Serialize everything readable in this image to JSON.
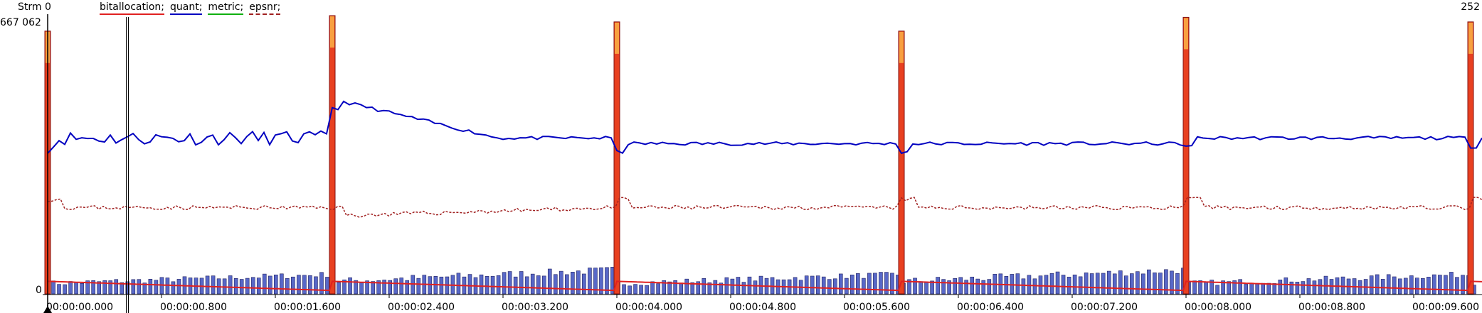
{
  "header": {
    "stream_label": "Strm 0",
    "right_label": "252",
    "y_max_label": "667 062",
    "y_min_label": "0"
  },
  "legend": [
    {
      "name": "bitallocation;",
      "color": "#e02020",
      "style": "solid"
    },
    {
      "name": "quant;",
      "color": "#0000c0",
      "style": "solid"
    },
    {
      "name": "metric;",
      "color": "#10b010",
      "style": "solid"
    },
    {
      "name": "epsnr;",
      "color": "#a02020",
      "style": "dashed"
    }
  ],
  "colors": {
    "frame_bar_fill": "#5868c8",
    "frame_bar_stroke": "#202060",
    "keyframe_fill": "#e84020",
    "keyframe_top": "#f8a040",
    "quant_line": "#0000c0",
    "bitalloc_line": "#e02020",
    "epsnr_line": "#a02020",
    "cursor": "#000000"
  },
  "chart_data": {
    "type": "bar",
    "title": "",
    "xlabel": "",
    "ylabel": "",
    "ylim": [
      0,
      667062
    ],
    "x_tick_labels": [
      "00:00:00.000",
      "00:00:00.800",
      "00:00:01.600",
      "00:00:02.400",
      "00:00:03.200",
      "00:00:04.000",
      "00:00:04.800",
      "00:00:05.600",
      "00:00:06.400",
      "00:00:07.200",
      "00:00:08.000",
      "00:00:08.800",
      "00:00:09.600"
    ],
    "x_tick_seconds": [
      0,
      0.8,
      1.6,
      2.4,
      3.2,
      4.0,
      4.8,
      5.6,
      6.4,
      7.2,
      8.0,
      8.8,
      9.6
    ],
    "frame_count": 252,
    "keyframes": [
      {
        "time_s": 0.0,
        "size": 630000
      },
      {
        "time_s": 2.0,
        "size": 667062
      },
      {
        "time_s": 4.0,
        "size": 652000
      },
      {
        "time_s": 6.0,
        "size": 630000
      },
      {
        "time_s": 8.0,
        "size": 663000
      },
      {
        "time_s": 10.0,
        "size": 652000
      }
    ],
    "frame_sizes_approx_range": [
      8000,
      52000
    ],
    "cursor_time_s": 0.56,
    "series": [
      {
        "name": "quant",
        "approx_level_fraction": 0.56,
        "note_peak_after_keyframe_2": 0.7
      },
      {
        "name": "epsnr",
        "approx_level_fraction": 0.31
      },
      {
        "name": "bitallocation",
        "approx_level_fraction_start": 0.045,
        "approx_level_fraction_end": 0.012
      }
    ]
  }
}
